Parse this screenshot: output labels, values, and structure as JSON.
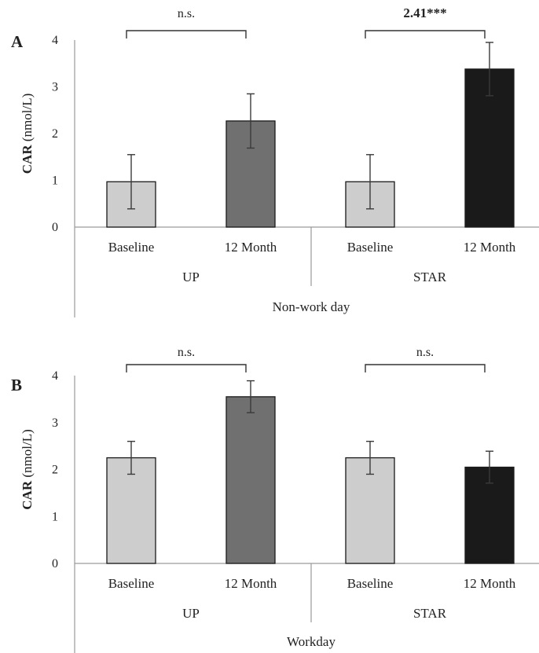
{
  "chart_data": [
    {
      "type": "bar",
      "panel": "A",
      "ylabel_bold": "CAR",
      "ylabel_rest": " (nmol/L)",
      "ylim": [
        0,
        4
      ],
      "yticks": [
        "0",
        "1",
        "2",
        "3",
        "4"
      ],
      "group_label": "Non-work day",
      "groups": [
        {
          "name": "UP",
          "categories": [
            "Baseline",
            "12 Month"
          ],
          "values": [
            0.97,
            2.27
          ],
          "errors": [
            0.58,
            0.58
          ],
          "colors": [
            "#cdcdcd",
            "#707070"
          ],
          "sig_text": "n.s.",
          "sig_bold": false
        },
        {
          "name": "STAR",
          "categories": [
            "Baseline",
            "12 Month"
          ],
          "values": [
            0.97,
            3.38
          ],
          "errors": [
            0.58,
            0.57
          ],
          "colors": [
            "#cdcdcd",
            "#1a1a1a"
          ],
          "sig_text": "2.41***",
          "sig_bold": true
        }
      ]
    },
    {
      "type": "bar",
      "panel": "B",
      "ylabel_bold": "CAR",
      "ylabel_rest": " (nmol/L)",
      "ylim": [
        0,
        4
      ],
      "yticks": [
        "0",
        "1",
        "2",
        "3",
        "4"
      ],
      "group_label": "Workday",
      "groups": [
        {
          "name": "UP",
          "categories": [
            "Baseline",
            "12 Month"
          ],
          "values": [
            2.25,
            3.55
          ],
          "errors": [
            0.35,
            0.34
          ],
          "colors": [
            "#cdcdcd",
            "#707070"
          ],
          "sig_text": "n.s.",
          "sig_bold": false
        },
        {
          "name": "STAR",
          "categories": [
            "Baseline",
            "12 Month"
          ],
          "values": [
            2.25,
            2.05
          ],
          "errors": [
            0.35,
            0.34
          ],
          "colors": [
            "#cdcdcd",
            "#1a1a1a"
          ],
          "sig_text": "n.s.",
          "sig_bold": false
        }
      ]
    }
  ]
}
